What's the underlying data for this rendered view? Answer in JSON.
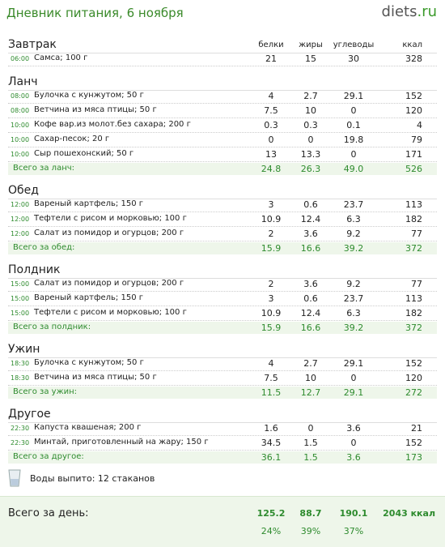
{
  "header": {
    "title": "Дневник питания, 6 ноября",
    "logo": "diets",
    "logo_suffix": ".ru"
  },
  "columns": [
    "белки",
    "жиры",
    "углеводы",
    "ккал"
  ],
  "sections": [
    {
      "title": "Завтрак",
      "rows": [
        {
          "time": "06:00",
          "name": "Самса; 100 г",
          "values": [
            "21",
            "15",
            "30",
            "328"
          ]
        }
      ]
    },
    {
      "title": "Ланч",
      "rows": [
        {
          "time": "08:00",
          "name": "Булочка с кунжутом; 50 г",
          "values": [
            "4",
            "2.7",
            "29.1",
            "152"
          ]
        },
        {
          "time": "08:00",
          "name": "Ветчина из мяса птицы; 50 г",
          "values": [
            "7.5",
            "10",
            "0",
            "120"
          ]
        },
        {
          "time": "10:00",
          "name": "Кофе вар.из молот.без сахара; 200 г",
          "values": [
            "0.3",
            "0.3",
            "0.1",
            "4"
          ]
        },
        {
          "time": "10:00",
          "name": "Сахар-песок; 20 г",
          "values": [
            "0",
            "0",
            "19.8",
            "79"
          ]
        },
        {
          "time": "10:00",
          "name": "Сыр пошехонский; 50 г",
          "values": [
            "13",
            "13.3",
            "0",
            "171"
          ]
        }
      ],
      "total": {
        "label": "Всего за ланч:",
        "values": [
          "24.8",
          "26.3",
          "49.0",
          "526"
        ]
      }
    },
    {
      "title": "Обед",
      "rows": [
        {
          "time": "12:00",
          "name": "Вареный картфель; 150 г",
          "values": [
            "3",
            "0.6",
            "23.7",
            "113"
          ]
        },
        {
          "time": "12:00",
          "name": "Тефтели с рисом и морковью; 100 г",
          "values": [
            "10.9",
            "12.4",
            "6.3",
            "182"
          ]
        },
        {
          "time": "12:00",
          "name": "Салат из помидор и огурцов; 200 г",
          "values": [
            "2",
            "3.6",
            "9.2",
            "77"
          ]
        }
      ],
      "total": {
        "label": "Всего за обед:",
        "values": [
          "15.9",
          "16.6",
          "39.2",
          "372"
        ]
      }
    },
    {
      "title": "Полдник",
      "rows": [
        {
          "time": "15:00",
          "name": "Салат из помидор и огурцов; 200 г",
          "values": [
            "2",
            "3.6",
            "9.2",
            "77"
          ]
        },
        {
          "time": "15:00",
          "name": "Вареный картфель; 150 г",
          "values": [
            "3",
            "0.6",
            "23.7",
            "113"
          ]
        },
        {
          "time": "15:00",
          "name": "Тефтели с рисом и морковью; 100 г",
          "values": [
            "10.9",
            "12.4",
            "6.3",
            "182"
          ]
        }
      ],
      "total": {
        "label": "Всего за полдник:",
        "values": [
          "15.9",
          "16.6",
          "39.2",
          "372"
        ]
      }
    },
    {
      "title": "Ужин",
      "rows": [
        {
          "time": "18:30",
          "name": "Булочка с кунжутом; 50 г",
          "values": [
            "4",
            "2.7",
            "29.1",
            "152"
          ]
        },
        {
          "time": "18:30",
          "name": "Ветчина из мяса птицы; 50 г",
          "values": [
            "7.5",
            "10",
            "0",
            "120"
          ]
        }
      ],
      "total": {
        "label": "Всего за ужин:",
        "values": [
          "11.5",
          "12.7",
          "29.1",
          "272"
        ]
      }
    },
    {
      "title": "Другое",
      "rows": [
        {
          "time": "22:30",
          "name": "Капуста квашеная; 200 г",
          "values": [
            "1.6",
            "0",
            "3.6",
            "21"
          ]
        },
        {
          "time": "22:30",
          "name": "Минтай, приготовленный на жару; 150 г",
          "values": [
            "34.5",
            "1.5",
            "0",
            "152"
          ]
        }
      ],
      "total": {
        "label": "Всего за другое:",
        "values": [
          "36.1",
          "1.5",
          "3.6",
          "173"
        ]
      }
    }
  ],
  "water": "Воды выпито: 12 стаканов",
  "day_total": {
    "label": "Всего за день:",
    "values": [
      "125.2",
      "88.7",
      "190.1",
      "2043 ккал"
    ],
    "percents": [
      "24%",
      "39%",
      "37%"
    ]
  }
}
